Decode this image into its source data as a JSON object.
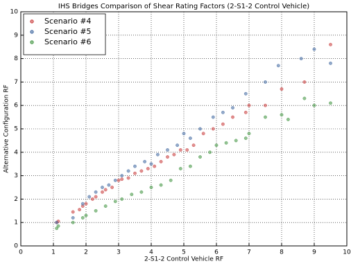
{
  "chart_data": {
    "type": "scatter",
    "title": "IHS Bridges Comparison of Shear Rating Factors (2-S1-2 Control Vehicle)",
    "x_label": "2-S1-2 Control Vehicle RF",
    "y_label": "Alternative Configuration RF",
    "xlim": [
      0,
      10
    ],
    "ylim": [
      0,
      10
    ],
    "xticks": [
      0,
      1,
      2,
      3,
      4,
      5,
      6,
      7,
      8,
      9,
      10
    ],
    "yticks": [
      0,
      1,
      2,
      3,
      4,
      5,
      6,
      7,
      8,
      9,
      10
    ],
    "grid": true,
    "legend": "upper left",
    "series": [
      {
        "name": "Scenario #4",
        "color": "#cc4444",
        "x": [
          1.1,
          1.15,
          1.6,
          1.8,
          1.9,
          2.0,
          2.2,
          2.3,
          2.5,
          2.6,
          2.8,
          3.0,
          3.1,
          3.3,
          3.5,
          3.7,
          3.9,
          4.1,
          4.3,
          4.5,
          4.7,
          4.9,
          5.1,
          5.3,
          5.6,
          5.9,
          6.2,
          6.5,
          6.9,
          7.0,
          7.5,
          8.0,
          8.7,
          9.5
        ],
        "values": [
          1.0,
          1.05,
          1.45,
          1.55,
          1.7,
          1.8,
          2.0,
          2.1,
          2.3,
          2.4,
          2.5,
          2.8,
          2.85,
          2.9,
          3.1,
          3.2,
          3.3,
          3.4,
          3.6,
          3.8,
          3.9,
          4.1,
          4.1,
          4.3,
          4.8,
          5.0,
          5.2,
          5.5,
          5.7,
          6.0,
          6.0,
          6.7,
          7.0,
          8.6
        ]
      },
      {
        "name": "Scenario #5",
        "color": "#4a6fa5",
        "x": [
          1.1,
          1.6,
          1.9,
          2.1,
          2.3,
          2.5,
          2.7,
          2.9,
          3.1,
          3.3,
          3.5,
          3.8,
          4.0,
          4.2,
          4.5,
          4.8,
          5.0,
          5.2,
          5.5,
          5.9,
          6.2,
          6.5,
          6.9,
          7.5,
          7.9,
          8.6,
          9.0,
          9.5
        ],
        "values": [
          1.0,
          1.2,
          1.8,
          2.1,
          2.3,
          2.5,
          2.6,
          2.8,
          3.0,
          3.2,
          3.4,
          3.6,
          3.5,
          3.9,
          4.1,
          4.3,
          4.8,
          4.6,
          5.0,
          5.5,
          5.7,
          5.9,
          6.5,
          7.0,
          7.7,
          8.0,
          8.4,
          7.8
        ]
      },
      {
        "name": "Scenario #6",
        "color": "#4a9a4a",
        "x": [
          1.1,
          1.15,
          1.6,
          1.9,
          2.0,
          2.3,
          2.6,
          2.9,
          3.1,
          3.4,
          3.7,
          4.0,
          4.3,
          4.6,
          4.9,
          5.2,
          5.5,
          5.8,
          6.0,
          6.3,
          6.6,
          6.9,
          7.0,
          7.5,
          8.0,
          8.2,
          8.7,
          9.0,
          9.5
        ],
        "values": [
          0.75,
          0.85,
          1.0,
          1.2,
          1.3,
          1.5,
          1.7,
          1.9,
          2.0,
          2.2,
          2.3,
          2.5,
          2.6,
          2.8,
          3.3,
          3.4,
          3.8,
          4.0,
          4.3,
          4.4,
          4.5,
          4.6,
          4.8,
          5.5,
          5.6,
          5.4,
          6.3,
          6.0,
          6.1
        ]
      }
    ]
  }
}
